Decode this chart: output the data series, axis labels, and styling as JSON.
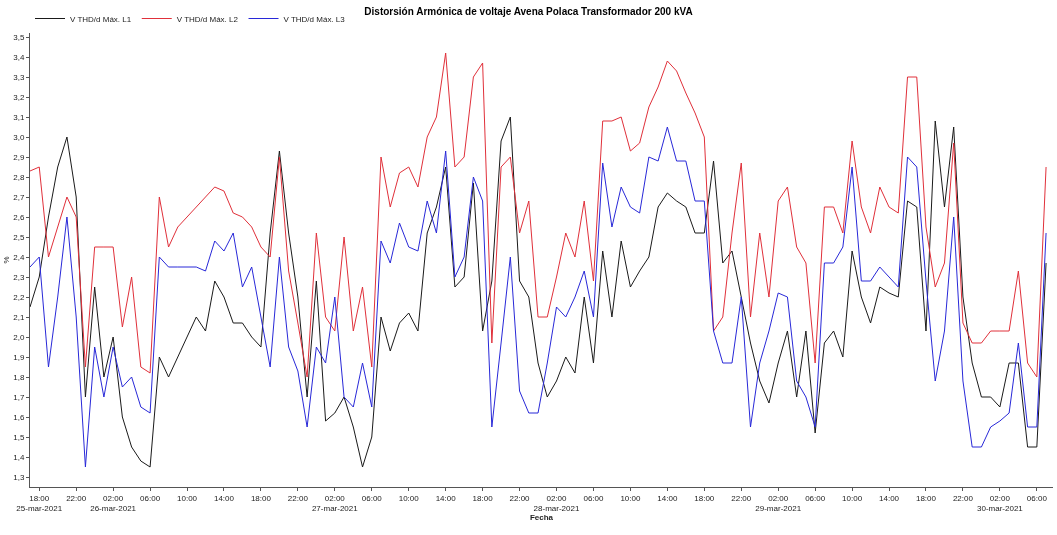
{
  "chart_data": {
    "type": "line",
    "title": "Distorsión Armónica de voltaje Avena Polaca Transformador 200 kVA",
    "xlabel": "Fecha",
    "ylabel": "%",
    "x": [
      "2021-03-25T17:00",
      "2021-03-25T18:00",
      "2021-03-25T19:00",
      "2021-03-25T20:00",
      "2021-03-25T21:00",
      "2021-03-25T22:00",
      "2021-03-25T23:00",
      "2021-03-26T00:00",
      "2021-03-26T01:00",
      "2021-03-26T02:00",
      "2021-03-26T03:00",
      "2021-03-26T04:00",
      "2021-03-26T05:00",
      "2021-03-26T06:00",
      "2021-03-26T07:00",
      "2021-03-26T08:00",
      "2021-03-26T09:00",
      "2021-03-26T10:00",
      "2021-03-26T11:00",
      "2021-03-26T12:00",
      "2021-03-26T13:00",
      "2021-03-26T14:00",
      "2021-03-26T15:00",
      "2021-03-26T16:00",
      "2021-03-26T17:00",
      "2021-03-26T18:00",
      "2021-03-26T19:00",
      "2021-03-26T20:00",
      "2021-03-26T21:00",
      "2021-03-26T22:00",
      "2021-03-26T23:00",
      "2021-03-27T00:00",
      "2021-03-27T01:00",
      "2021-03-27T02:00",
      "2021-03-27T03:00",
      "2021-03-27T04:00",
      "2021-03-27T05:00",
      "2021-03-27T06:00",
      "2021-03-27T07:00",
      "2021-03-27T08:00",
      "2021-03-27T09:00",
      "2021-03-27T10:00",
      "2021-03-27T11:00",
      "2021-03-27T12:00",
      "2021-03-27T13:00",
      "2021-03-27T14:00",
      "2021-03-27T15:00",
      "2021-03-27T16:00",
      "2021-03-27T17:00",
      "2021-03-27T18:00",
      "2021-03-27T19:00",
      "2021-03-27T20:00",
      "2021-03-27T21:00",
      "2021-03-27T22:00",
      "2021-03-27T23:00",
      "2021-03-28T00:00",
      "2021-03-28T01:00",
      "2021-03-28T02:00",
      "2021-03-28T03:00",
      "2021-03-28T04:00",
      "2021-03-28T05:00",
      "2021-03-28T06:00",
      "2021-03-28T07:00",
      "2021-03-28T08:00",
      "2021-03-28T09:00",
      "2021-03-28T10:00",
      "2021-03-28T11:00",
      "2021-03-28T12:00",
      "2021-03-28T13:00",
      "2021-03-28T14:00",
      "2021-03-28T15:00",
      "2021-03-28T16:00",
      "2021-03-28T17:00",
      "2021-03-28T18:00",
      "2021-03-28T19:00",
      "2021-03-28T20:00",
      "2021-03-28T21:00",
      "2021-03-28T22:00",
      "2021-03-28T23:00",
      "2021-03-29T00:00",
      "2021-03-29T01:00",
      "2021-03-29T02:00",
      "2021-03-29T03:00",
      "2021-03-29T04:00",
      "2021-03-29T05:00",
      "2021-03-29T06:00",
      "2021-03-29T07:00",
      "2021-03-29T08:00",
      "2021-03-29T09:00",
      "2021-03-29T10:00",
      "2021-03-29T11:00",
      "2021-03-29T12:00",
      "2021-03-29T13:00",
      "2021-03-29T14:00",
      "2021-03-29T15:00",
      "2021-03-29T16:00",
      "2021-03-29T17:00",
      "2021-03-29T18:00",
      "2021-03-29T19:00",
      "2021-03-29T20:00",
      "2021-03-29T21:00",
      "2021-03-29T22:00",
      "2021-03-29T23:00",
      "2021-03-30T00:00",
      "2021-03-30T01:00",
      "2021-03-30T02:00",
      "2021-03-30T03:00",
      "2021-03-30T04:00",
      "2021-03-30T05:00",
      "2021-03-30T06:00",
      "2021-03-30T07:00"
    ],
    "series": [
      {
        "name": "V THD/d Máx. L1",
        "color": "#1a1a1a",
        "values": [
          2.15,
          2.3,
          2.6,
          2.85,
          3.0,
          2.7,
          1.7,
          2.25,
          1.8,
          2.0,
          1.6,
          1.45,
          1.38,
          1.35,
          1.9,
          1.8,
          1.9,
          2.0,
          2.1,
          2.03,
          2.28,
          2.2,
          2.07,
          2.07,
          2.0,
          1.95,
          2.52,
          2.93,
          2.52,
          2.2,
          1.7,
          2.28,
          1.58,
          1.62,
          1.7,
          1.55,
          1.35,
          1.5,
          2.1,
          1.93,
          2.07,
          2.12,
          2.03,
          2.52,
          2.65,
          2.85,
          2.25,
          2.3,
          2.77,
          2.03,
          2.28,
          2.98,
          3.1,
          2.28,
          2.2,
          1.87,
          1.7,
          1.78,
          1.9,
          1.82,
          2.2,
          1.87,
          2.43,
          2.1,
          2.48,
          2.25,
          2.33,
          2.4,
          2.65,
          2.72,
          2.68,
          2.65,
          2.52,
          2.52,
          2.88,
          2.37,
          2.43,
          2.2,
          1.97,
          1.78,
          1.67,
          1.87,
          2.03,
          1.7,
          2.03,
          1.52,
          1.97,
          2.03,
          1.9,
          2.43,
          2.2,
          2.07,
          2.25,
          2.22,
          2.2,
          2.68,
          2.65,
          2.03,
          3.08,
          2.65,
          3.05,
          2.2,
          1.87,
          1.7,
          1.7,
          1.65,
          1.87,
          1.87,
          1.45,
          1.45,
          2.37
        ]
      },
      {
        "name": "V THD/d Máx. L2",
        "color": "#e0303a",
        "values": [
          2.83,
          2.85,
          2.4,
          2.55,
          2.7,
          2.6,
          1.85,
          2.45,
          2.45,
          2.45,
          2.05,
          2.3,
          1.85,
          1.82,
          2.7,
          2.45,
          2.55,
          2.6,
          2.65,
          2.7,
          2.75,
          2.73,
          2.62,
          2.6,
          2.55,
          2.45,
          2.4,
          2.9,
          2.33,
          2.07,
          1.8,
          2.52,
          2.1,
          2.03,
          2.5,
          2.03,
          2.25,
          1.85,
          2.9,
          2.65,
          2.82,
          2.85,
          2.75,
          3.0,
          3.1,
          3.42,
          2.85,
          2.9,
          3.3,
          3.37,
          1.97,
          2.85,
          2.9,
          2.52,
          2.68,
          2.1,
          2.1,
          2.3,
          2.52,
          2.4,
          2.68,
          2.28,
          3.08,
          3.08,
          3.1,
          2.93,
          2.97,
          3.15,
          3.25,
          3.38,
          3.33,
          3.22,
          3.12,
          3.0,
          2.03,
          2.1,
          2.52,
          2.87,
          2.1,
          2.52,
          2.2,
          2.68,
          2.75,
          2.45,
          2.37,
          1.87,
          2.65,
          2.65,
          2.52,
          2.98,
          2.65,
          2.52,
          2.75,
          2.65,
          2.62,
          3.3,
          3.3,
          2.55,
          2.25,
          2.37,
          2.97,
          2.07,
          1.97,
          1.97,
          2.03,
          2.03,
          2.03,
          2.33,
          1.87,
          1.8,
          2.85
        ]
      },
      {
        "name": "V THD/d Máx. L3",
        "color": "#2828d8",
        "values": [
          2.35,
          2.4,
          1.85,
          2.2,
          2.6,
          2.1,
          1.35,
          1.95,
          1.7,
          1.95,
          1.75,
          1.8,
          1.65,
          1.62,
          2.4,
          2.35,
          2.35,
          2.35,
          2.35,
          2.33,
          2.48,
          2.43,
          2.52,
          2.25,
          2.35,
          2.1,
          1.85,
          2.4,
          1.95,
          1.83,
          1.55,
          1.95,
          1.87,
          2.2,
          1.7,
          1.65,
          1.87,
          1.65,
          2.48,
          2.37,
          2.57,
          2.45,
          2.43,
          2.68,
          2.52,
          2.93,
          2.3,
          2.4,
          2.8,
          2.68,
          1.55,
          1.97,
          2.4,
          1.73,
          1.62,
          1.62,
          1.87,
          2.15,
          2.1,
          2.2,
          2.33,
          2.1,
          2.87,
          2.55,
          2.75,
          2.65,
          2.62,
          2.9,
          2.88,
          3.05,
          2.88,
          2.88,
          2.68,
          2.68,
          2.03,
          1.87,
          1.87,
          2.2,
          1.55,
          1.87,
          2.03,
          2.22,
          2.2,
          1.78,
          1.7,
          1.55,
          2.37,
          2.37,
          2.45,
          2.85,
          2.28,
          2.28,
          2.35,
          2.3,
          2.25,
          2.9,
          2.85,
          2.28,
          1.78,
          2.03,
          2.6,
          1.78,
          1.45,
          1.45,
          1.55,
          1.58,
          1.62,
          1.97,
          1.55,
          1.55,
          2.52
        ]
      }
    ],
    "xlim": [
      "2021-03-25T17:00",
      "2021-03-30T07:45"
    ],
    "xticks": [
      {
        "value": "2021-03-25T18:00",
        "label": "18:00\n25-mar-2021"
      },
      {
        "value": "2021-03-25T22:00",
        "label": "22:00"
      },
      {
        "value": "2021-03-26T02:00",
        "label": "02:00\n26-mar-2021"
      },
      {
        "value": "2021-03-26T06:00",
        "label": "06:00"
      },
      {
        "value": "2021-03-26T10:00",
        "label": "10:00"
      },
      {
        "value": "2021-03-26T14:00",
        "label": "14:00"
      },
      {
        "value": "2021-03-26T18:00",
        "label": "18:00"
      },
      {
        "value": "2021-03-26T22:00",
        "label": "22:00"
      },
      {
        "value": "2021-03-27T02:00",
        "label": "02:00\n27-mar-2021"
      },
      {
        "value": "2021-03-27T06:00",
        "label": "06:00"
      },
      {
        "value": "2021-03-27T10:00",
        "label": "10:00"
      },
      {
        "value": "2021-03-27T14:00",
        "label": "14:00"
      },
      {
        "value": "2021-03-27T18:00",
        "label": "18:00"
      },
      {
        "value": "2021-03-27T22:00",
        "label": "22:00"
      },
      {
        "value": "2021-03-28T02:00",
        "label": "02:00\n28-mar-2021"
      },
      {
        "value": "2021-03-28T06:00",
        "label": "06:00"
      },
      {
        "value": "2021-03-28T10:00",
        "label": "10:00"
      },
      {
        "value": "2021-03-28T14:00",
        "label": "14:00"
      },
      {
        "value": "2021-03-28T18:00",
        "label": "18:00"
      },
      {
        "value": "2021-03-28T22:00",
        "label": "22:00"
      },
      {
        "value": "2021-03-29T02:00",
        "label": "02:00\n29-mar-2021"
      },
      {
        "value": "2021-03-29T06:00",
        "label": "06:00"
      },
      {
        "value": "2021-03-29T10:00",
        "label": "10:00"
      },
      {
        "value": "2021-03-29T14:00",
        "label": "14:00"
      },
      {
        "value": "2021-03-29T18:00",
        "label": "18:00"
      },
      {
        "value": "2021-03-29T22:00",
        "label": "22:00"
      },
      {
        "value": "2021-03-30T02:00",
        "label": "02:00\n30-mar-2021"
      },
      {
        "value": "2021-03-30T06:00",
        "label": "06:00"
      }
    ],
    "ylim": [
      1.25,
      3.52
    ],
    "yticks": [
      {
        "value": 1.3,
        "label": "1,3"
      },
      {
        "value": 1.4,
        "label": "1,4"
      },
      {
        "value": 1.5,
        "label": "1,5"
      },
      {
        "value": 1.6,
        "label": "1,6"
      },
      {
        "value": 1.7,
        "label": "1,7"
      },
      {
        "value": 1.8,
        "label": "1,8"
      },
      {
        "value": 1.9,
        "label": "1,9"
      },
      {
        "value": 2.0,
        "label": "2,0"
      },
      {
        "value": 2.1,
        "label": "2,1"
      },
      {
        "value": 2.2,
        "label": "2,2"
      },
      {
        "value": 2.3,
        "label": "2,3"
      },
      {
        "value": 2.4,
        "label": "2,4"
      },
      {
        "value": 2.5,
        "label": "2,5"
      },
      {
        "value": 2.6,
        "label": "2,6"
      },
      {
        "value": 2.7,
        "label": "2,7"
      },
      {
        "value": 2.8,
        "label": "2,8"
      },
      {
        "value": 2.9,
        "label": "2,9"
      },
      {
        "value": 3.0,
        "label": "3,0"
      },
      {
        "value": 3.1,
        "label": "3,1"
      },
      {
        "value": 3.2,
        "label": "3,2"
      },
      {
        "value": 3.3,
        "label": "3,3"
      },
      {
        "value": 3.4,
        "label": "3,4"
      },
      {
        "value": 3.5,
        "label": "3,5"
      }
    ],
    "grid": false,
    "legend": "top left",
    "marker": "none",
    "line_style": "solid"
  }
}
